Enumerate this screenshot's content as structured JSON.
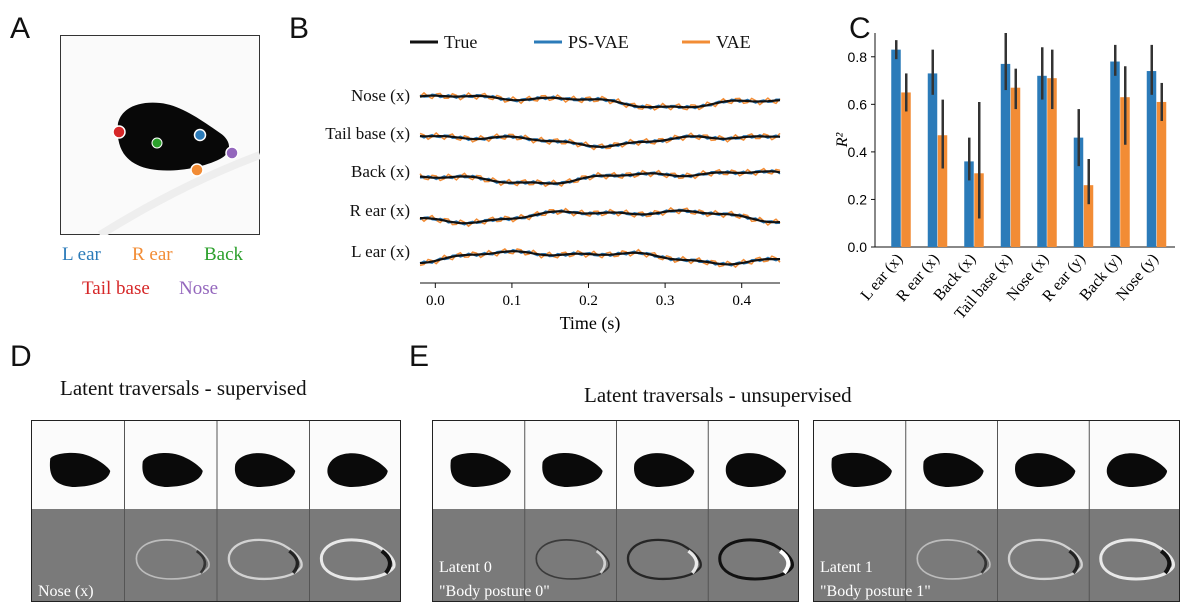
{
  "panels": {
    "a": "A",
    "b": "B",
    "c": "C",
    "d": "D",
    "e": "E"
  },
  "colors": {
    "true": "#111111",
    "psvae": "#2b7bb9",
    "vae": "#f28c35",
    "l_ear": "#2b7bb9",
    "r_ear": "#f28c35",
    "back": "#2ca02c",
    "tail_base": "#d62728",
    "nose": "#9467bd"
  },
  "keypoint_legend": {
    "l_ear": "L ear",
    "r_ear": "R ear",
    "back": "Back",
    "tail_base": "Tail base",
    "nose": "Nose"
  },
  "traces": {
    "legend": [
      "True",
      "PS-VAE",
      "VAE"
    ],
    "rows": [
      "Nose (x)",
      "Tail base (x)",
      "Back (x)",
      "R ear (x)",
      "L ear (x)"
    ],
    "xlabel": "Time (s)",
    "xticks": [
      "0.0",
      "0.1",
      "0.2",
      "0.3",
      "0.4"
    ],
    "xlim": [
      -0.02,
      0.45
    ]
  },
  "chart_data": {
    "type": "bar",
    "categories": [
      "L ear (x)",
      "R ear (x)",
      "Back (x)",
      "Tail base (x)",
      "Nose (x)",
      "R ear (y)",
      "Back (y)",
      "Nose (y)"
    ],
    "series": [
      {
        "name": "PS-VAE",
        "values": [
          0.83,
          0.73,
          0.36,
          0.77,
          0.72,
          0.46,
          0.78,
          0.74
        ],
        "err_low": [
          0.79,
          0.64,
          0.28,
          0.66,
          0.62,
          0.34,
          0.72,
          0.64
        ],
        "err_high": [
          0.87,
          0.83,
          0.46,
          0.9,
          0.84,
          0.58,
          0.85,
          0.85
        ]
      },
      {
        "name": "VAE",
        "values": [
          0.65,
          0.47,
          0.31,
          0.67,
          0.71,
          0.26,
          0.63,
          0.61
        ],
        "err_low": [
          0.57,
          0.33,
          0.12,
          0.58,
          0.58,
          0.18,
          0.43,
          0.53
        ],
        "err_high": [
          0.73,
          0.62,
          0.61,
          0.75,
          0.83,
          0.37,
          0.76,
          0.69
        ]
      }
    ],
    "ylabel": "R²",
    "yticks": [
      "0.0",
      "0.2",
      "0.4",
      "0.6",
      "0.8"
    ],
    "ylim": [
      0,
      0.9
    ]
  },
  "traversals": {
    "supervised_title": "Latent traversals - supervised",
    "unsupervised_title": "Latent traversals - unsupervised",
    "supervised_label": "Nose (x)",
    "latent0_label": "Latent 0",
    "latent0_name": "\"Body posture 0\"",
    "latent1_label": "Latent 1",
    "latent1_name": "\"Body posture 1\""
  }
}
